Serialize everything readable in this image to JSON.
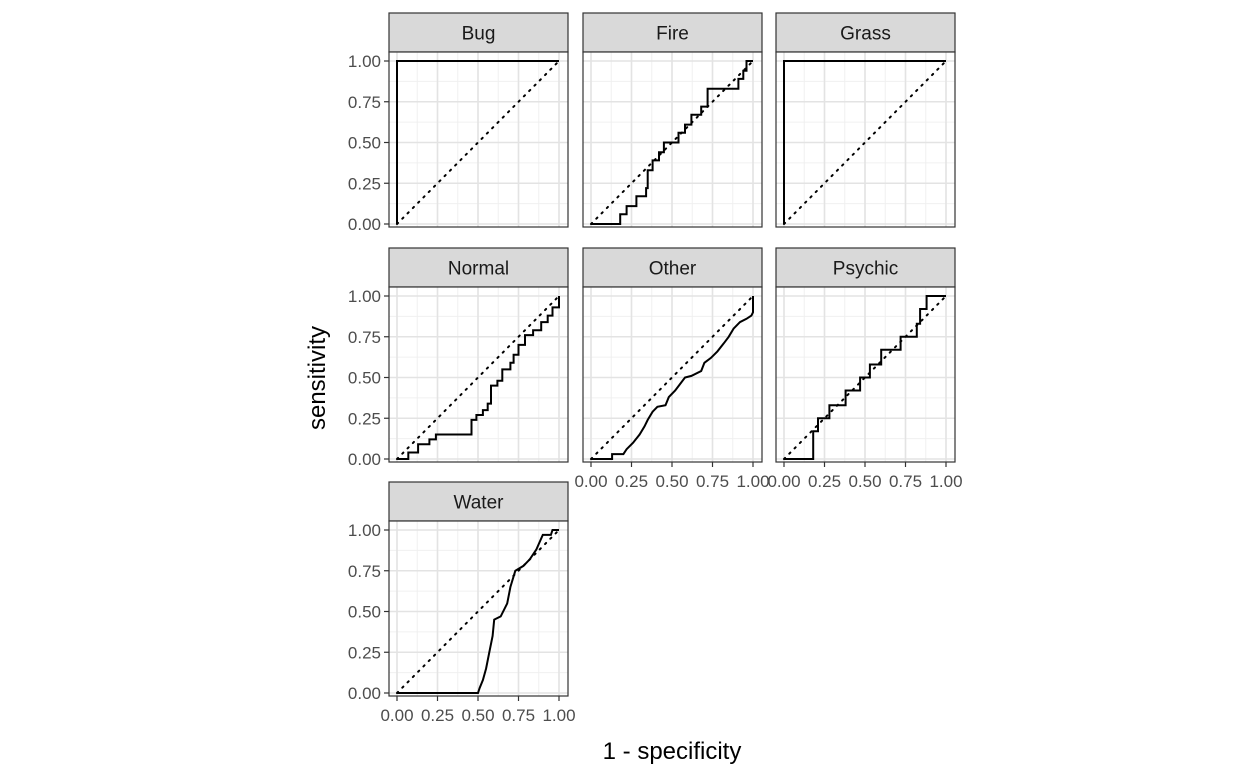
{
  "chart_data": {
    "type": "line",
    "layout": "facet_wrap",
    "xlabel": "1 - specificity",
    "ylabel": "sensitivity",
    "xlim": [
      0,
      1
    ],
    "ylim": [
      0,
      1
    ],
    "grid": true,
    "reference_line": "diagonal dotted",
    "x_ticks": [
      "0.00",
      "0.25",
      "0.50",
      "0.75",
      "1.00"
    ],
    "y_ticks": [
      "0.00",
      "0.25",
      "0.50",
      "0.75",
      "1.00"
    ],
    "panels": [
      {
        "label": "Bug",
        "curve": [
          [
            0,
            0
          ],
          [
            0,
            1
          ],
          [
            1,
            1
          ]
        ]
      },
      {
        "label": "Fire",
        "curve": [
          [
            0,
            0
          ],
          [
            0.18,
            0
          ],
          [
            0.18,
            0.06
          ],
          [
            0.22,
            0.06
          ],
          [
            0.22,
            0.11
          ],
          [
            0.28,
            0.11
          ],
          [
            0.28,
            0.17
          ],
          [
            0.34,
            0.17
          ],
          [
            0.34,
            0.22
          ],
          [
            0.35,
            0.22
          ],
          [
            0.35,
            0.33
          ],
          [
            0.38,
            0.33
          ],
          [
            0.38,
            0.39
          ],
          [
            0.42,
            0.39
          ],
          [
            0.42,
            0.44
          ],
          [
            0.45,
            0.44
          ],
          [
            0.45,
            0.5
          ],
          [
            0.54,
            0.5
          ],
          [
            0.54,
            0.56
          ],
          [
            0.58,
            0.56
          ],
          [
            0.58,
            0.61
          ],
          [
            0.62,
            0.61
          ],
          [
            0.62,
            0.67
          ],
          [
            0.68,
            0.67
          ],
          [
            0.68,
            0.72
          ],
          [
            0.72,
            0.72
          ],
          [
            0.72,
            0.83
          ],
          [
            0.91,
            0.83
          ],
          [
            0.91,
            0.89
          ],
          [
            0.94,
            0.89
          ],
          [
            0.94,
            0.94
          ],
          [
            0.96,
            0.94
          ],
          [
            0.96,
            1
          ],
          [
            1,
            1
          ]
        ]
      },
      {
        "label": "Grass",
        "curve": [
          [
            0,
            0
          ],
          [
            0,
            1
          ],
          [
            1,
            1
          ]
        ]
      },
      {
        "label": "Normal",
        "curve": [
          [
            0,
            0
          ],
          [
            0.07,
            0
          ],
          [
            0.07,
            0.04
          ],
          [
            0.13,
            0.04
          ],
          [
            0.13,
            0.09
          ],
          [
            0.2,
            0.09
          ],
          [
            0.2,
            0.12
          ],
          [
            0.24,
            0.12
          ],
          [
            0.24,
            0.15
          ],
          [
            0.46,
            0.15
          ],
          [
            0.46,
            0.24
          ],
          [
            0.49,
            0.24
          ],
          [
            0.49,
            0.27
          ],
          [
            0.53,
            0.27
          ],
          [
            0.53,
            0.3
          ],
          [
            0.56,
            0.3
          ],
          [
            0.56,
            0.34
          ],
          [
            0.58,
            0.34
          ],
          [
            0.58,
            0.45
          ],
          [
            0.62,
            0.45
          ],
          [
            0.62,
            0.48
          ],
          [
            0.65,
            0.48
          ],
          [
            0.65,
            0.55
          ],
          [
            0.7,
            0.55
          ],
          [
            0.7,
            0.59
          ],
          [
            0.72,
            0.59
          ],
          [
            0.72,
            0.64
          ],
          [
            0.75,
            0.64
          ],
          [
            0.75,
            0.7
          ],
          [
            0.79,
            0.7
          ],
          [
            0.79,
            0.76
          ],
          [
            0.84,
            0.76
          ],
          [
            0.84,
            0.79
          ],
          [
            0.89,
            0.79
          ],
          [
            0.89,
            0.84
          ],
          [
            0.93,
            0.84
          ],
          [
            0.93,
            0.88
          ],
          [
            0.96,
            0.88
          ],
          [
            0.96,
            0.93
          ],
          [
            1,
            0.93
          ],
          [
            1,
            1
          ]
        ]
      },
      {
        "label": "Other",
        "curve": [
          [
            0,
            0
          ],
          [
            0.13,
            0
          ],
          [
            0.13,
            0.03
          ],
          [
            0.2,
            0.03
          ],
          [
            0.22,
            0.06
          ],
          [
            0.26,
            0.1
          ],
          [
            0.3,
            0.15
          ],
          [
            0.33,
            0.2
          ],
          [
            0.35,
            0.24
          ],
          [
            0.38,
            0.29
          ],
          [
            0.41,
            0.32
          ],
          [
            0.46,
            0.33
          ],
          [
            0.48,
            0.38
          ],
          [
            0.52,
            0.42
          ],
          [
            0.55,
            0.46
          ],
          [
            0.58,
            0.5
          ],
          [
            0.62,
            0.51
          ],
          [
            0.68,
            0.54
          ],
          [
            0.7,
            0.59
          ],
          [
            0.74,
            0.62
          ],
          [
            0.78,
            0.66
          ],
          [
            0.82,
            0.71
          ],
          [
            0.85,
            0.75
          ],
          [
            0.88,
            0.8
          ],
          [
            0.92,
            0.84
          ],
          [
            0.96,
            0.86
          ],
          [
            0.99,
            0.88
          ],
          [
            1,
            0.9
          ],
          [
            1,
            1
          ]
        ]
      },
      {
        "label": "Psychic",
        "curve": [
          [
            0,
            0
          ],
          [
            0.18,
            0
          ],
          [
            0.18,
            0.17
          ],
          [
            0.21,
            0.17
          ],
          [
            0.21,
            0.25
          ],
          [
            0.28,
            0.25
          ],
          [
            0.28,
            0.33
          ],
          [
            0.38,
            0.33
          ],
          [
            0.38,
            0.42
          ],
          [
            0.47,
            0.42
          ],
          [
            0.47,
            0.5
          ],
          [
            0.53,
            0.5
          ],
          [
            0.53,
            0.58
          ],
          [
            0.6,
            0.58
          ],
          [
            0.6,
            0.67
          ],
          [
            0.72,
            0.67
          ],
          [
            0.72,
            0.75
          ],
          [
            0.82,
            0.75
          ],
          [
            0.82,
            0.83
          ],
          [
            0.84,
            0.83
          ],
          [
            0.84,
            0.92
          ],
          [
            0.88,
            0.92
          ],
          [
            0.88,
            1
          ],
          [
            1,
            1
          ]
        ]
      },
      {
        "label": "Water",
        "curve": [
          [
            0,
            0
          ],
          [
            0.5,
            0
          ],
          [
            0.51,
            0.03
          ],
          [
            0.53,
            0.08
          ],
          [
            0.55,
            0.15
          ],
          [
            0.57,
            0.25
          ],
          [
            0.59,
            0.35
          ],
          [
            0.6,
            0.45
          ],
          [
            0.64,
            0.47
          ],
          [
            0.68,
            0.55
          ],
          [
            0.7,
            0.65
          ],
          [
            0.73,
            0.75
          ],
          [
            0.78,
            0.78
          ],
          [
            0.82,
            0.82
          ],
          [
            0.86,
            0.88
          ],
          [
            0.9,
            0.97
          ],
          [
            0.95,
            0.97
          ],
          [
            0.96,
            1
          ],
          [
            1,
            1
          ]
        ]
      }
    ]
  }
}
